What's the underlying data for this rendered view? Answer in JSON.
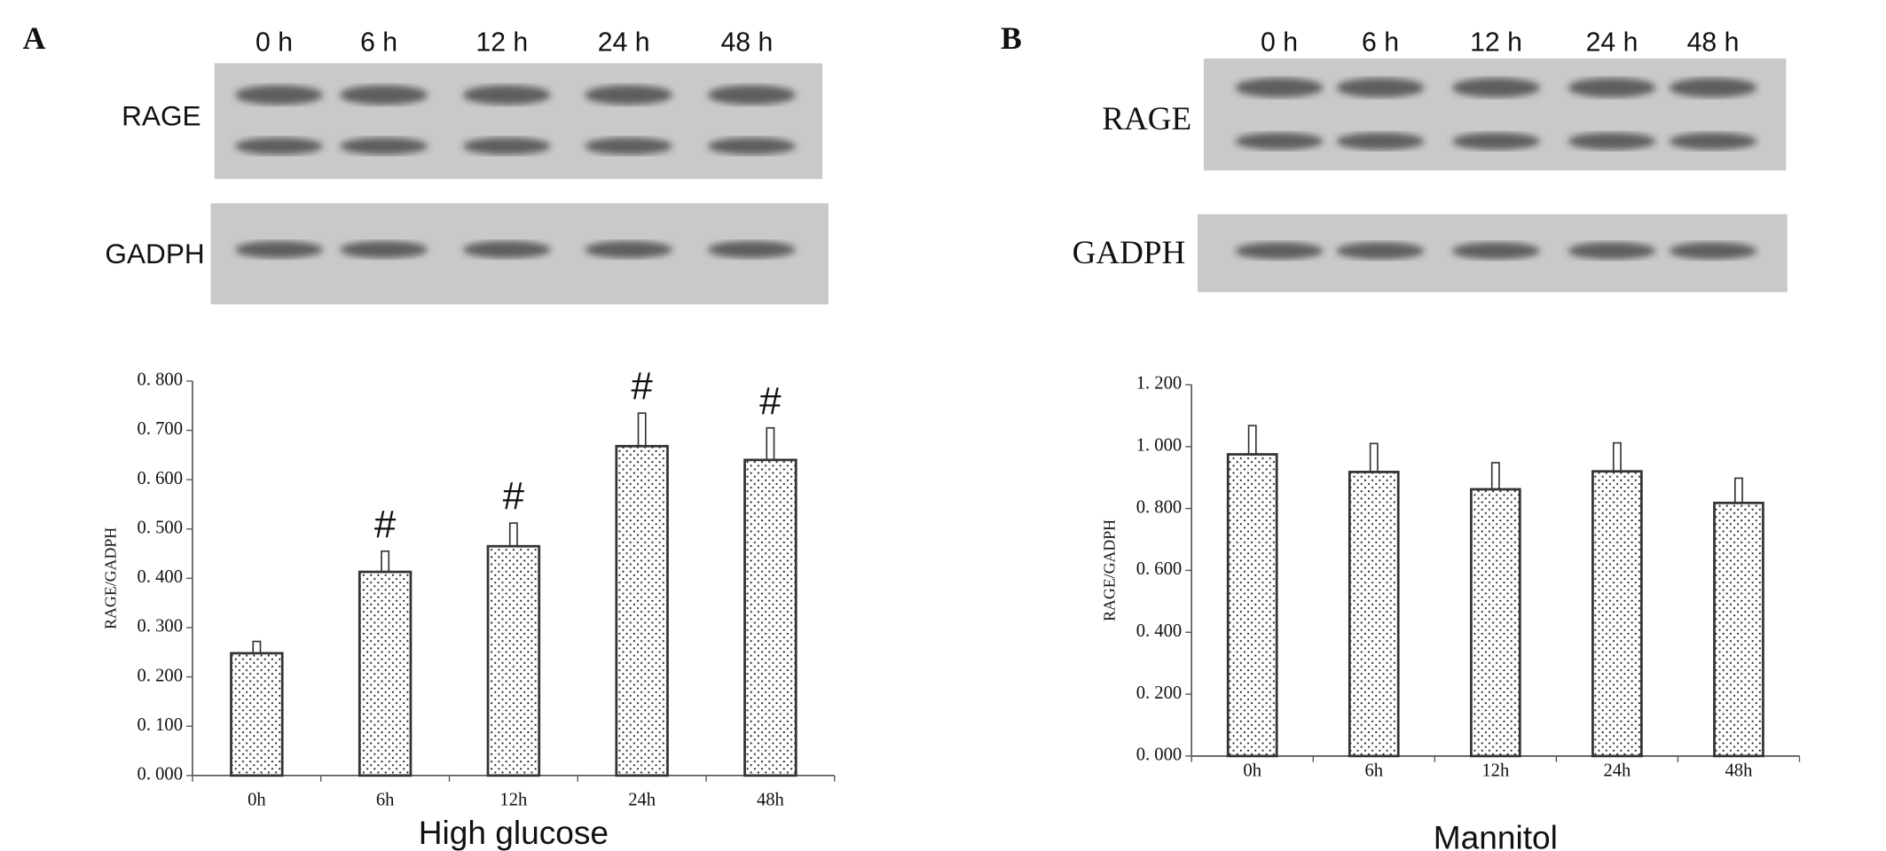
{
  "chart_data": [
    {
      "type": "bar",
      "panel": "A",
      "blot_lanes": [
        "0 h",
        "6 h",
        "12 h",
        "24 h",
        "48 h"
      ],
      "blot_rows": [
        "RAGE",
        "GADPH"
      ],
      "categories": [
        "0h",
        "6h",
        "12h",
        "24h",
        "48h"
      ],
      "values": [
        0.248,
        0.413,
        0.465,
        0.668,
        0.64
      ],
      "errors": [
        0.024,
        0.042,
        0.047,
        0.067,
        0.065
      ],
      "markers": [
        null,
        "#",
        "#",
        "#",
        "#"
      ],
      "ylim": [
        0,
        0.8
      ],
      "yticks": [
        {
          "value": 0,
          "label": "0. 000"
        },
        {
          "value": 0.1,
          "label": "0. 100"
        },
        {
          "value": 0.2,
          "label": "0. 200"
        },
        {
          "value": 0.3,
          "label": "0. 300"
        },
        {
          "value": 0.4,
          "label": "0. 400"
        },
        {
          "value": 0.5,
          "label": "0. 500"
        },
        {
          "value": 0.6,
          "label": "0. 600"
        },
        {
          "value": 0.7,
          "label": "0. 700"
        },
        {
          "value": 0.8,
          "label": "0. 800"
        }
      ],
      "ylabel": "RAGE/GADPH",
      "xlabel": "High glucose"
    },
    {
      "type": "bar",
      "panel": "B",
      "blot_lanes": [
        "0 h",
        "6 h",
        "12 h",
        "24 h",
        "48 h"
      ],
      "blot_rows": [
        "RAGE",
        "GADPH"
      ],
      "categories": [
        "0h",
        "6h",
        "12h",
        "24h",
        "48h"
      ],
      "values": [
        0.975,
        0.918,
        0.862,
        0.92,
        0.818
      ],
      "errors": [
        0.093,
        0.092,
        0.086,
        0.092,
        0.08
      ],
      "ylim": [
        0,
        1.2
      ],
      "yticks": [
        {
          "value": 0,
          "label": "0. 000"
        },
        {
          "value": 0.2,
          "label": "0. 200"
        },
        {
          "value": 0.4,
          "label": "0. 400"
        },
        {
          "value": 0.6,
          "label": "0. 600"
        },
        {
          "value": 0.8,
          "label": "0. 800"
        },
        {
          "value": 1.0,
          "label": "1. 000"
        },
        {
          "value": 1.2,
          "label": "1. 200"
        }
      ],
      "ylabel": "RAGE/GADPH",
      "xlabel": "Mannitol"
    }
  ]
}
